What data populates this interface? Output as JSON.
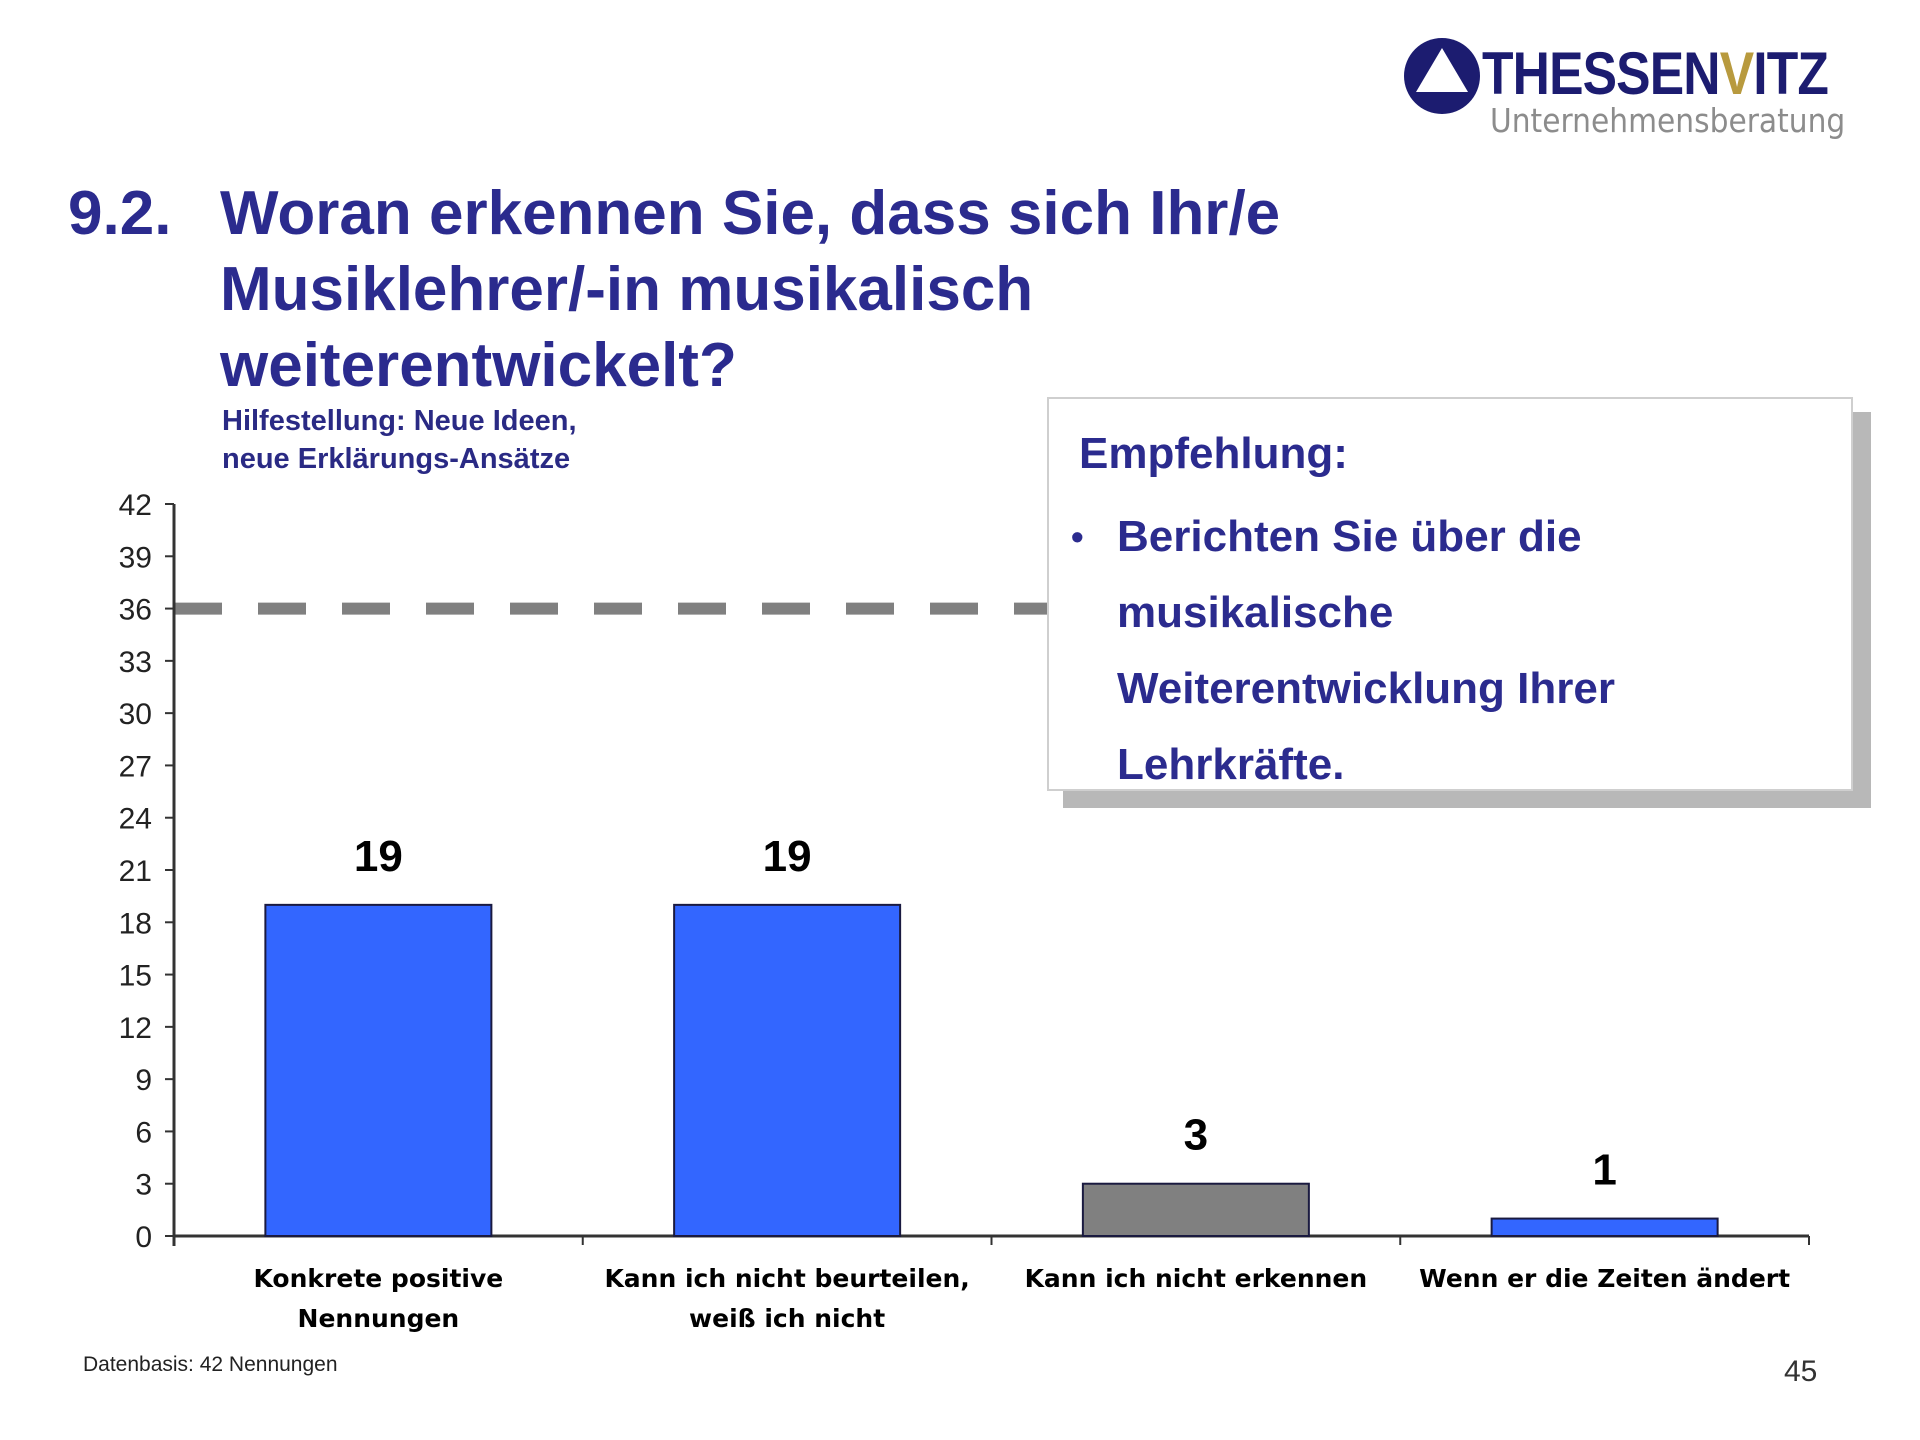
{
  "logo": {
    "brand_prefix": "THESSEN",
    "brand_highlight": "V",
    "brand_suffix": "ITZ",
    "tagline": "Unternehmensberatung",
    "colors": {
      "navy": "#1c1c70",
      "gold": "#b89a3e",
      "gray": "#8c8c8c"
    }
  },
  "header": {
    "number": "9.2.",
    "title_lines": [
      "Woran erkennen Sie, dass sich Ihr/e",
      "Musiklehrer/-in musikalisch",
      "weiterentwickelt?"
    ],
    "subtitle_lines": [
      "Hilfestellung: Neue Ideen,",
      "neue Erklärungs-Ansätze"
    ]
  },
  "callout": {
    "heading": "Empfehlung:",
    "bullet_icon": "bullet-dot",
    "bullet_lines": [
      "Berichten Sie über die",
      "musikalische",
      "Weiterentwicklung Ihrer",
      "Lehrkräfte."
    ]
  },
  "chart_data": {
    "type": "bar",
    "title": "9.2. Woran erkennen Sie, dass sich Ihr/e Musiklehrer/-in musikalisch weiterentwickelt?",
    "xlabel": "",
    "ylabel": "",
    "categories": [
      [
        "Konkrete positive",
        "Nennungen"
      ],
      [
        "Kann ich nicht beurteilen,",
        "weiß ich nicht"
      ],
      [
        "Kann ich nicht erkennen"
      ],
      [
        "Wenn er die Zeiten ändert"
      ]
    ],
    "values": [
      19,
      19,
      3,
      1
    ],
    "value_labels": [
      "19",
      "19",
      "3",
      "1"
    ],
    "bar_colors": [
      "#3366ff",
      "#3366ff",
      "#808080",
      "#3366ff"
    ],
    "ylim": [
      0,
      42
    ],
    "yticks": [
      0,
      3,
      6,
      9,
      12,
      15,
      18,
      21,
      24,
      27,
      30,
      33,
      36,
      39,
      42
    ],
    "reference_line": {
      "value": 36,
      "style": "dashed",
      "color": "#808080"
    },
    "grid": false,
    "legend": "none"
  },
  "footer": {
    "source": "Datenbasis: 42 Nennungen",
    "page_number": "45"
  }
}
